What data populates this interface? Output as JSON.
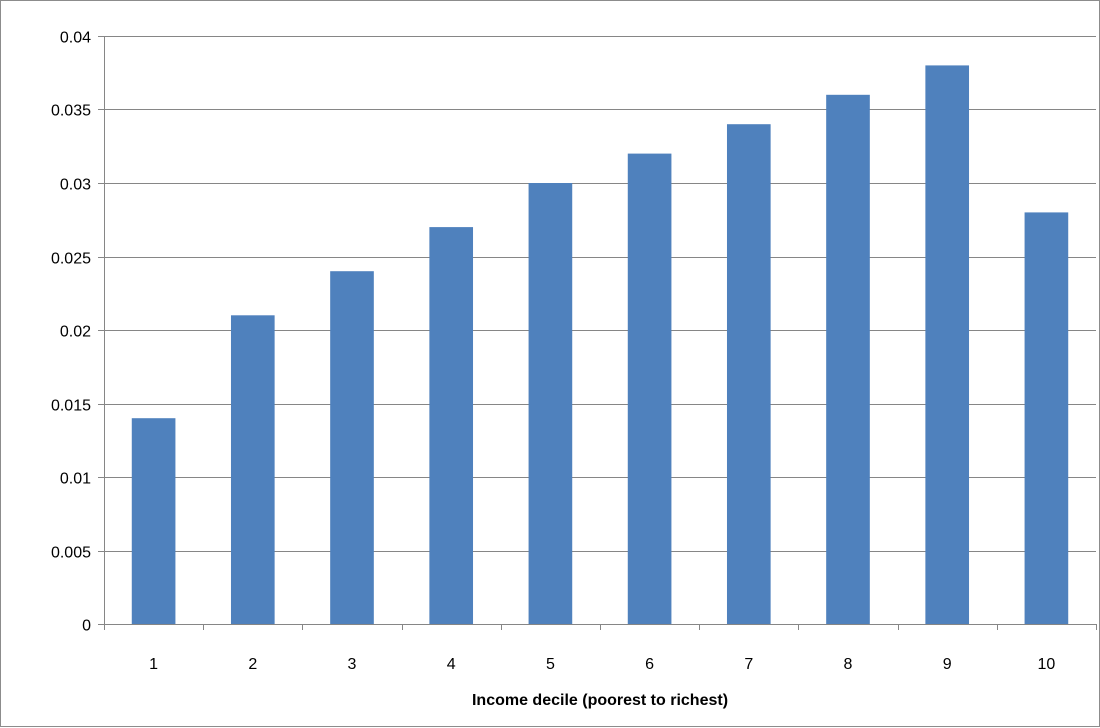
{
  "chart_data": {
    "type": "bar",
    "title": "",
    "xlabel": "Income decile (poorest to richest)",
    "ylabel": "",
    "categories": [
      "1",
      "2",
      "3",
      "4",
      "5",
      "6",
      "7",
      "8",
      "9",
      "10"
    ],
    "values": [
      0.014,
      0.021,
      0.024,
      0.027,
      0.03,
      0.032,
      0.034,
      0.036,
      0.038,
      0.028
    ],
    "ylim": [
      0,
      0.04
    ],
    "yticks": [
      "0",
      "0.005",
      "0.01",
      "0.015",
      "0.02",
      "0.025",
      "0.03",
      "0.035",
      "0.04"
    ],
    "grid": true,
    "legend": "none",
    "colors": {
      "bar": "#4f81bd",
      "grid": "#868686",
      "axis": "#868686"
    }
  }
}
